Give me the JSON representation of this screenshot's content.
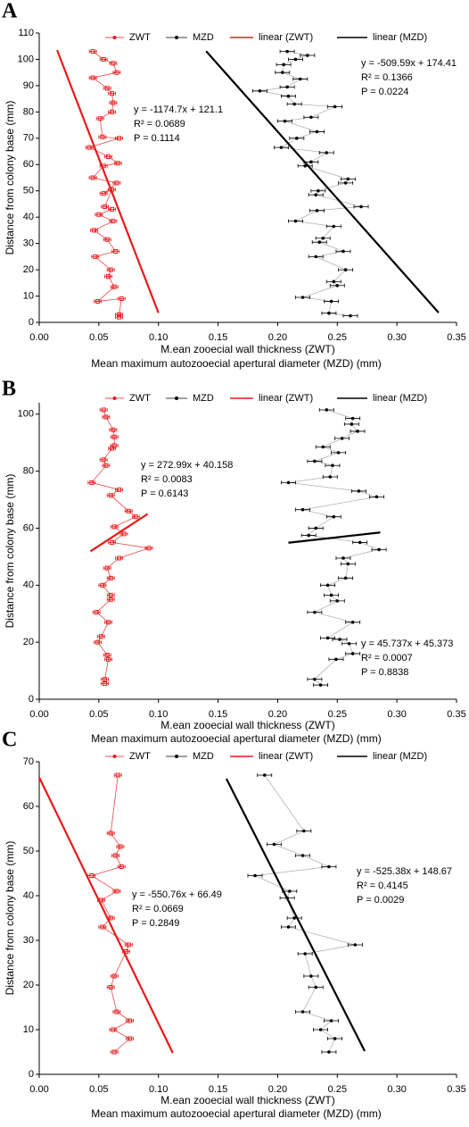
{
  "chart_data": [
    {
      "type": "scatter",
      "label": "A",
      "ylabel": "Distance from colony base (mm)",
      "xlabel": "M.ean zooecial wall thickness (ZWT)",
      "xlabel2": "Mean maximum autozooecial apertural diameter (MZD) (mm)",
      "xlim": [
        0,
        0.35
      ],
      "xticks": [
        {
          "value": 0,
          "label": "0.00"
        },
        0.05,
        {
          "value": 0.1,
          "label": "0.10"
        },
        0.15,
        {
          "value": 0.2,
          "label": "0.20"
        },
        0.25,
        {
          "value": 0.3,
          "label": "0.30"
        },
        0.35
      ],
      "ylim": [
        0,
        110
      ],
      "yticks": [
        0,
        10,
        20,
        30,
        40,
        50,
        60,
        70,
        80,
        90,
        100,
        110
      ],
      "series": [
        {
          "name": "ZWT",
          "type": "scatter",
          "color": "#e8191b",
          "xerr": 0.003,
          "x": [
            0.045,
            0.054,
            0.062,
            0.065,
            0.045,
            0.057,
            0.061,
            0.062,
            0.061,
            0.051,
            0.053,
            0.067,
            0.042,
            0.058,
            0.066,
            0.054,
            0.045,
            0.065,
            0.054,
            0.061,
            0.055,
            0.061,
            0.05,
            0.062,
            0.046,
            0.057,
            0.064,
            0.047,
            0.06,
            0.058,
            0.063,
            0.049,
            0.069,
            0.067,
            0.067
          ],
          "values": [
            103,
            100,
            98.5,
            95,
            93,
            89,
            87,
            83.5,
            80,
            77.5,
            70.5,
            70,
            66.5,
            63,
            60.5,
            59.5,
            55,
            53,
            49,
            50.5,
            44,
            43,
            41,
            38.5,
            35,
            31.5,
            27,
            25,
            20,
            17.5,
            13.5,
            8,
            9,
            3,
            2
          ]
        },
        {
          "name": "MZD",
          "type": "scatter",
          "color": "#000000",
          "xerr": 0.006,
          "x": [
            0.208,
            0.225,
            0.215,
            0.205,
            0.204,
            0.219,
            0.208,
            0.185,
            0.209,
            0.214,
            0.248,
            0.228,
            0.206,
            0.233,
            0.216,
            0.203,
            0.241,
            0.228,
            0.223,
            0.259,
            0.257,
            0.234,
            0.232,
            0.27,
            0.233,
            0.215,
            0.247,
            0.238,
            0.235,
            0.255,
            0.232,
            0.257,
            0.247,
            0.25,
            0.221,
            0.245,
            0.243,
            0.261
          ],
          "values": [
            103,
            101.5,
            100,
            98,
            95,
            92.5,
            89.5,
            88,
            86,
            83,
            82,
            78,
            76.5,
            72.5,
            70,
            66.5,
            64.5,
            61,
            59.5,
            54.5,
            53,
            50,
            48.5,
            44,
            42.5,
            38.5,
            36.5,
            32,
            30.5,
            27,
            25,
            20,
            15.5,
            14,
            9.5,
            8,
            3.5,
            2.5
          ]
        },
        {
          "name": "linear (ZWT)",
          "type": "line",
          "color": "#e8191b",
          "x": [
            0.015,
            0.1
          ],
          "values": [
            103.5,
            3.6
          ]
        },
        {
          "name": "linear (MZD)",
          "type": "line",
          "color": "#000000",
          "x": [
            0.14,
            0.335
          ],
          "values": [
            103.1,
            3.7
          ]
        }
      ],
      "annotations": [
        {
          "color": "#e8191b",
          "lines": [
            "y = -1174.7x + 121.1",
            "R² = 0.0689",
            "P = 0.1114"
          ]
        },
        {
          "color": "#000000",
          "lines": [
            "y = -509.59x + 174.41",
            "R² = 0.1366",
            "P = 0.0224"
          ]
        }
      ]
    },
    {
      "type": "scatter",
      "label": "B",
      "ylabel": "Distance from colony base (mm)",
      "xlabel": "M.ean zooecial wall thickness (ZWT)",
      "xlabel2": "Mean maximum autozooecial apertural diameter (MZD) (mm)",
      "xlim": [
        0,
        0.35
      ],
      "xticks": [
        {
          "value": 0,
          "label": "0.00"
        },
        0.05,
        {
          "value": 0.1,
          "label": "0.10"
        },
        0.15,
        {
          "value": 0.2,
          "label": "0.20"
        },
        0.25,
        {
          "value": 0.3,
          "label": "0.30"
        },
        0.35
      ],
      "ylim": [
        0,
        104
      ],
      "yticks": [
        0,
        20,
        40,
        60,
        80,
        100
      ],
      "series": [
        {
          "name": "ZWT",
          "type": "scatter",
          "color": "#e8191b",
          "xerr": 0.003,
          "x": [
            0.054,
            0.056,
            0.062,
            0.063,
            0.063,
            0.061,
            0.054,
            0.056,
            0.044,
            0.067,
            0.06,
            0.075,
            0.081,
            0.063,
            0.071,
            0.061,
            0.092,
            0.067,
            0.057,
            0.06,
            0.053,
            0.06,
            0.06,
            0.048,
            0.058,
            0.052,
            0.049,
            0.057,
            0.058,
            0.055,
            0.055
          ],
          "values": [
            101.5,
            99,
            94.5,
            92,
            89,
            88,
            84,
            82,
            76,
            73.5,
            71.5,
            66,
            64,
            60.5,
            58,
            55,
            53,
            49.5,
            46,
            42.5,
            40,
            36.5,
            35,
            30.5,
            27,
            22,
            20,
            15.5,
            14,
            7,
            5.5
          ]
        },
        {
          "name": "MZD",
          "type": "scatter",
          "color": "#000000",
          "xerr": 0.006,
          "x": [
            0.241,
            0.263,
            0.262,
            0.267,
            0.254,
            0.238,
            0.251,
            0.231,
            0.246,
            0.244,
            0.209,
            0.268,
            0.283,
            0.221,
            0.247,
            0.232,
            0.226,
            0.269,
            0.285,
            0.255,
            0.259,
            0.257,
            0.242,
            0.245,
            0.25,
            0.231,
            0.263,
            0.242,
            0.252,
            0.26,
            0.263,
            0.249,
            0.231,
            0.236
          ],
          "values": [
            101.5,
            98.5,
            96.5,
            94,
            91.5,
            88.5,
            86.5,
            83.5,
            82,
            78,
            76,
            73,
            71,
            66.5,
            64,
            60,
            57.5,
            55,
            52.5,
            49.5,
            47.5,
            42.5,
            40,
            36.5,
            34.5,
            30.5,
            27,
            21.5,
            21,
            19.5,
            16,
            14,
            7,
            5
          ]
        },
        {
          "name": "linear (ZWT)",
          "type": "line",
          "color": "#e8191b",
          "x": [
            0.043,
            0.091
          ],
          "values": [
            51.9,
            65.0
          ]
        },
        {
          "name": "linear (MZD)",
          "type": "line",
          "color": "#000000",
          "x": [
            0.209,
            0.286
          ],
          "values": [
            54.9,
            58.5
          ]
        }
      ],
      "annotations": [
        {
          "color": "#e8191b",
          "lines": [
            "y = 272.99x + 40.158",
            "R² = 0.0083",
            "P = 0.6143"
          ]
        },
        {
          "color": "#000000",
          "lines": [
            "y = 45.737x + 45.373",
            "R² = 0.0007",
            "P = 0.8838"
          ]
        }
      ]
    },
    {
      "type": "scatter",
      "label": "C",
      "ylabel": "Distance from colony base (mm)",
      "xlabel": "M.ean zooecial wall thickness (ZWT)",
      "xlabel2": "Mean maximum autozooecial apertural diameter (MZD) (mm)",
      "xlim": [
        0,
        0.35
      ],
      "xticks": [
        {
          "value": 0,
          "label": "0.00"
        },
        0.05,
        {
          "value": 0.1,
          "label": "0.10"
        },
        0.15,
        {
          "value": 0.2,
          "label": "0.20"
        },
        0.25,
        {
          "value": 0.3,
          "label": "0.30"
        },
        0.35
      ],
      "ylim": [
        0,
        70
      ],
      "yticks": [
        0,
        10,
        20,
        30,
        40,
        50,
        60,
        70
      ],
      "series": [
        {
          "name": "ZWT",
          "type": "scatter",
          "color": "#e8191b",
          "xerr": 0.003,
          "x": [
            0.066,
            0.06,
            0.068,
            0.064,
            0.069,
            0.044,
            0.065,
            0.052,
            0.06,
            0.053,
            0.075,
            0.073,
            0.063,
            0.06,
            0.065,
            0.076,
            0.062,
            0.076,
            0.063
          ],
          "values": [
            67,
            54,
            51,
            49,
            46.5,
            44.5,
            41,
            39,
            35,
            33,
            29,
            27.5,
            22,
            19.5,
            14,
            12,
            10,
            8,
            5
          ]
        },
        {
          "name": "MZD",
          "type": "scatter",
          "color": "#000000",
          "xerr": 0.006,
          "x": [
            0.189,
            0.222,
            0.197,
            0.221,
            0.243,
            0.181,
            0.21,
            0.208,
            0.214,
            0.209,
            0.265,
            0.223,
            0.228,
            0.232,
            0.221,
            0.245,
            0.236,
            0.248,
            0.243
          ],
          "values": [
            67,
            54.5,
            51.5,
            49,
            46.5,
            44.5,
            41,
            39.5,
            35,
            33,
            29,
            27,
            22,
            19.5,
            14,
            12,
            10,
            8,
            5
          ]
        },
        {
          "name": "linear (ZWT)",
          "type": "line",
          "color": "#e8191b",
          "x": [
            0,
            0.112
          ],
          "values": [
            66.5,
            4.8
          ]
        },
        {
          "name": "linear (MZD)",
          "type": "line",
          "color": "#000000",
          "x": [
            0.157,
            0.273
          ],
          "values": [
            66.2,
            5.2
          ]
        }
      ],
      "annotations": [
        {
          "color": "#e8191b",
          "lines": [
            "y = -550.76x + 66.49",
            "R² = 0.0669",
            "P = 0.2849"
          ]
        },
        {
          "color": "#000000",
          "lines": [
            "y = -525.38x + 148.67",
            "R² = 0.4145",
            "P = 0.0029"
          ]
        }
      ]
    }
  ]
}
